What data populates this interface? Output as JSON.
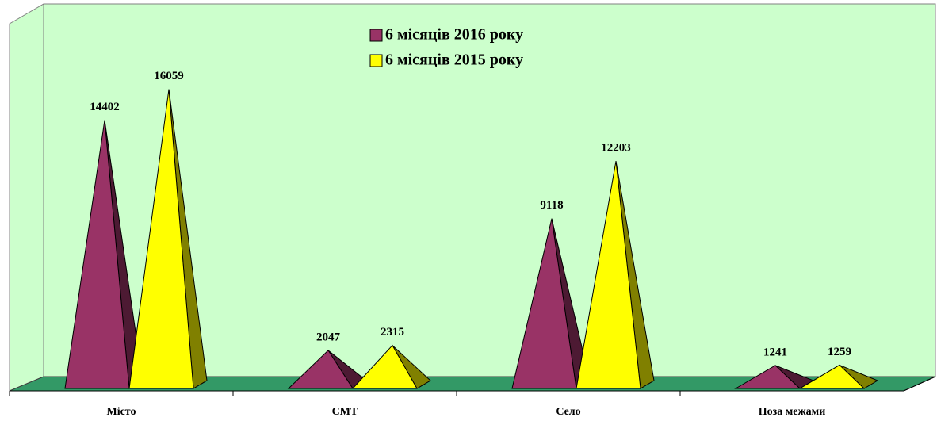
{
  "chart_data": {
    "type": "pyramid3d",
    "categories": [
      "Місто",
      "СМТ",
      "Село",
      "Поза межами"
    ],
    "series": [
      {
        "name": "6 місяців 2016 року",
        "color": "#993366",
        "values": [
          14402,
          2047,
          9118,
          1241
        ]
      },
      {
        "name": "6 місяців 2015 року",
        "color": "#ffff00",
        "values": [
          16059,
          2315,
          12203,
          1259
        ]
      }
    ],
    "ylim": [
      0,
      20000
    ]
  }
}
